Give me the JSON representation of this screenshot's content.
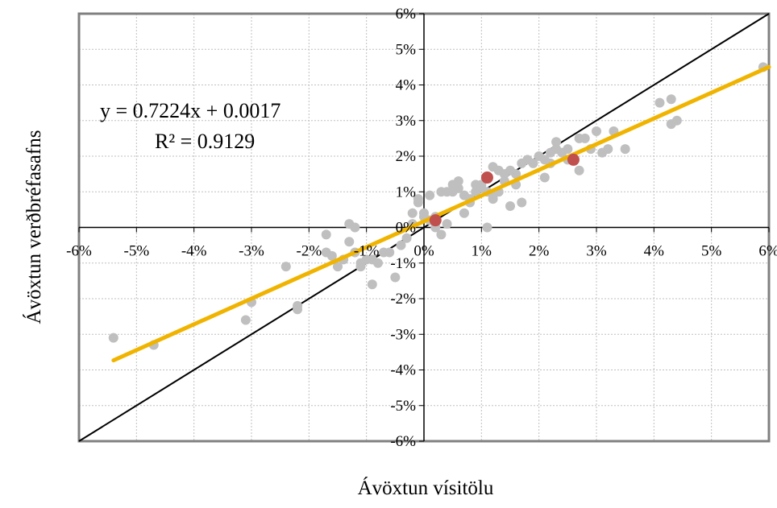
{
  "chart_data": {
    "type": "scatter",
    "xlabel": "Ávöxtun vísitölu",
    "ylabel": "Ávöxtun verðbréfasafns",
    "xlim": [
      -0.06,
      0.06
    ],
    "ylim": [
      -0.06,
      0.06
    ],
    "x_ticks": [
      -0.06,
      -0.05,
      -0.04,
      -0.03,
      -0.02,
      -0.01,
      0,
      0.01,
      0.02,
      0.03,
      0.04,
      0.05,
      0.06
    ],
    "x_tick_labels": [
      "-6%",
      "-5%",
      "-4%",
      "-3%",
      "-2%",
      "-1%",
      "0%",
      "1%",
      "2%",
      "3%",
      "4%",
      "5%",
      "6%"
    ],
    "y_ticks": [
      0.06,
      0.05,
      0.04,
      0.03,
      0.02,
      0.01,
      0,
      -0.01,
      -0.02,
      -0.03,
      -0.04,
      -0.05,
      -0.06
    ],
    "y_tick_labels": [
      "6%",
      "5%",
      "4%",
      "3%",
      "2%",
      "1%",
      "0%",
      "-1%",
      "-2%",
      "-3%",
      "-4%",
      "-5%",
      "-6%"
    ],
    "grid": true,
    "annotations": {
      "equation": "y = 0.7224x + 0.0017",
      "r_squared": "R² = 0.9129"
    },
    "colors": {
      "points": "#bfbfbf",
      "highlight_points": "#c0504d",
      "trendline": "#f0b400",
      "reference_line": "#000000",
      "grid": "#bfbfbf",
      "border": "#808080"
    },
    "trendline": {
      "slope": 0.7224,
      "intercept": 0.0017,
      "x_range": [
        -0.054,
        0.06
      ]
    },
    "reference_line": {
      "slope": 1,
      "intercept": 0
    },
    "series": [
      {
        "points": [
          [
            -0.054,
            -0.031
          ],
          [
            -0.047,
            -0.033
          ],
          [
            -0.031,
            -0.026
          ],
          [
            -0.03,
            -0.021
          ],
          [
            -0.024,
            -0.011
          ],
          [
            -0.022,
            -0.022
          ],
          [
            -0.022,
            -0.023
          ],
          [
            -0.017,
            -0.002
          ],
          [
            -0.017,
            -0.007
          ],
          [
            -0.016,
            -0.008
          ],
          [
            -0.015,
            -0.011
          ],
          [
            -0.014,
            -0.009
          ],
          [
            -0.013,
            -0.004
          ],
          [
            -0.013,
            0.001
          ],
          [
            -0.012,
            0.0
          ],
          [
            -0.012,
            -0.007
          ],
          [
            -0.011,
            -0.01
          ],
          [
            -0.011,
            -0.011
          ],
          [
            -0.01,
            -0.009
          ],
          [
            -0.009,
            -0.009
          ],
          [
            -0.008,
            -0.01
          ],
          [
            -0.007,
            -0.007
          ],
          [
            -0.006,
            -0.007
          ],
          [
            -0.009,
            -0.016
          ],
          [
            -0.005,
            -0.014
          ],
          [
            -0.004,
            -0.005
          ],
          [
            -0.003,
            -0.003
          ],
          [
            -0.002,
            0.001
          ],
          [
            -0.002,
            0.004
          ],
          [
            -0.001,
            0.007
          ],
          [
            -0.001,
            0.008
          ],
          [
            0.0,
            0.004
          ],
          [
            0.0,
            0.003
          ],
          [
            0.001,
            0.009
          ],
          [
            0.001,
            0.002
          ],
          [
            0.002,
            0.003
          ],
          [
            0.002,
            0.0
          ],
          [
            0.003,
            -0.002
          ],
          [
            0.003,
            0.01
          ],
          [
            0.004,
            0.01
          ],
          [
            0.004,
            0.001
          ],
          [
            0.005,
            0.012
          ],
          [
            0.005,
            0.01
          ],
          [
            0.006,
            0.011
          ],
          [
            0.006,
            0.013
          ],
          [
            0.007,
            0.004
          ],
          [
            0.007,
            0.009
          ],
          [
            0.008,
            0.008
          ],
          [
            0.008,
            0.007
          ],
          [
            0.009,
            0.012
          ],
          [
            0.009,
            0.01
          ],
          [
            0.01,
            0.011
          ],
          [
            0.01,
            0.012
          ],
          [
            0.011,
            0.0
          ],
          [
            0.011,
            0.014
          ],
          [
            0.011,
            0.01
          ],
          [
            0.012,
            0.009
          ],
          [
            0.012,
            0.017
          ],
          [
            0.012,
            0.008
          ],
          [
            0.013,
            0.01
          ],
          [
            0.013,
            0.016
          ],
          [
            0.014,
            0.013
          ],
          [
            0.014,
            0.015
          ],
          [
            0.015,
            0.006
          ],
          [
            0.015,
            0.016
          ],
          [
            0.016,
            0.015
          ],
          [
            0.016,
            0.012
          ],
          [
            0.017,
            0.007
          ],
          [
            0.017,
            0.018
          ],
          [
            0.018,
            0.019
          ],
          [
            0.019,
            0.018
          ],
          [
            0.02,
            0.02
          ],
          [
            0.021,
            0.014
          ],
          [
            0.021,
            0.019
          ],
          [
            0.022,
            0.021
          ],
          [
            0.022,
            0.018
          ],
          [
            0.023,
            0.022
          ],
          [
            0.023,
            0.024
          ],
          [
            0.024,
            0.021
          ],
          [
            0.025,
            0.019
          ],
          [
            0.025,
            0.022
          ],
          [
            0.027,
            0.016
          ],
          [
            0.027,
            0.025
          ],
          [
            0.028,
            0.025
          ],
          [
            0.029,
            0.022
          ],
          [
            0.03,
            0.027
          ],
          [
            0.031,
            0.021
          ],
          [
            0.032,
            0.022
          ],
          [
            0.033,
            0.027
          ],
          [
            0.035,
            0.022
          ],
          [
            0.041,
            0.035
          ],
          [
            0.043,
            0.036
          ],
          [
            0.043,
            0.029
          ],
          [
            0.044,
            0.03
          ],
          [
            0.059,
            0.045
          ]
        ]
      },
      {
        "points": [
          [
            0.002,
            0.002
          ],
          [
            0.011,
            0.014
          ],
          [
            0.026,
            0.019
          ]
        ]
      }
    ]
  }
}
